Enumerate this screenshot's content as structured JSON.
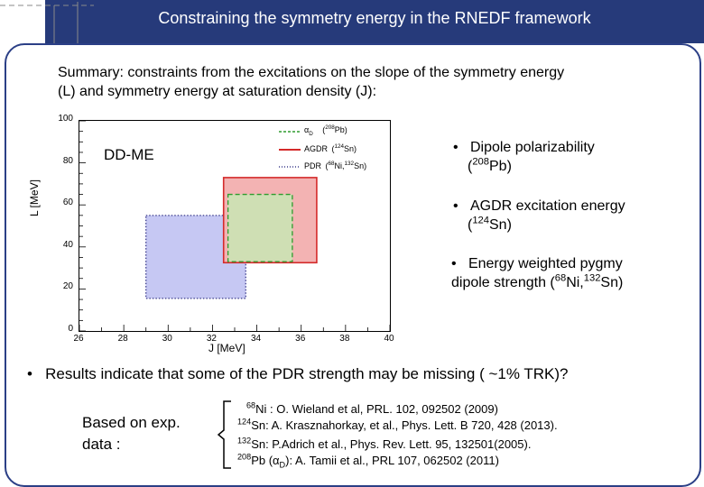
{
  "slide": {
    "title": "Constraining the symmetry energy in the RNEDF framework",
    "summary_line1": "Summary:  constraints from the excitations on the slope of the symmetry energy",
    "summary_line2": "(L) and symmetry energy at saturation density (J):",
    "model_label": "DD-ME",
    "bullets": [
      {
        "marker": "•",
        "text": "Dipole polarizability",
        "nucleus_pre": "(",
        "mass": "208",
        "nucleus": "Pb)"
      },
      {
        "marker": "•",
        "text": "AGDR excitation energy",
        "nucleus_pre": "(",
        "mass": "124",
        "nucleus": "Sn)"
      },
      {
        "marker": "•",
        "text": "Energy weighted pygmy",
        "line2_pre": "dipole strength (",
        "mass1": "68",
        "el1": "Ni,",
        "mass2": "132",
        "el2": "Sn)"
      }
    ],
    "results_marker": "•",
    "results": "Results indicate that some of the PDR strength may be missing ( ~1% TRK)?",
    "based_line1": "Based on exp.",
    "based_line2": "data :",
    "references": [
      {
        "mass": "68",
        "pre": "Ni : O. Wieland et al, PRL. 102, 092502 (2009)"
      },
      {
        "mass": "124",
        "pre": "Sn: A. Krasznahorkay, et al., Phys. Lett. B 720, 428 (2013)."
      },
      {
        "mass": "132",
        "pre": "Sn: P.Adrich et al., Phys. Rev. Lett. 95, 132501(2005)."
      },
      {
        "mass": "208",
        "pre": "Pb (α",
        "sub": "D",
        "post": "):  A. Tamii et al., PRL 107, 062502 (2011)"
      }
    ],
    "colors": {
      "title_band": "#263a7a",
      "frame": "#2b3f86",
      "alpha_d": "#2e9c2e",
      "agdr": "#d42a2a",
      "pdr": "#4a4a9a"
    }
  },
  "chart_data": {
    "type": "box-constraints",
    "xlabel": "J [MeV]",
    "ylabel": "L [MeV]",
    "xlim": [
      26,
      40
    ],
    "ylim": [
      0,
      100
    ],
    "xticks": [
      "26",
      "28",
      "30",
      "32",
      "34",
      "36",
      "38",
      "40"
    ],
    "yticks": [
      "0",
      "20",
      "40",
      "60",
      "80",
      "100"
    ],
    "regions": [
      {
        "name": "PDR",
        "nuclei": "(68Ni,132Sn)",
        "J": [
          29.0,
          33.5
        ],
        "L": [
          15.5,
          55.0
        ],
        "style": "dotted",
        "color": "#3c3c8c",
        "fill": "#c6c8f3"
      },
      {
        "name": "AGDR",
        "nuclei": "(124Sn)",
        "J": [
          32.5,
          36.7
        ],
        "L": [
          32.5,
          73.0
        ],
        "style": "solid",
        "color": "#d42a2a",
        "fill": "#f3b3b3"
      },
      {
        "name": "αD",
        "nuclei": "(208Pb)",
        "J": [
          32.7,
          35.6
        ],
        "L": [
          33.0,
          65.0
        ],
        "style": "dashed",
        "color": "#2e9c2e",
        "fill": "#c8e6b4"
      }
    ],
    "legend": [
      {
        "label_main": "α",
        "label_sub": "D",
        "label_pre": "(",
        "mass": "208",
        "label_post": "Pb)",
        "color": "#2e9c2e",
        "style": "dashed"
      },
      {
        "label_main": "AGDR",
        "label_pre": "(",
        "mass": "124",
        "label_post": "Sn)",
        "color": "#d42a2a",
        "style": "solid"
      },
      {
        "label_main": "PDR",
        "label_pre": "(",
        "mass": "68",
        "label_mid": "Ni,",
        "mass2": "132",
        "label_post": "Sn)",
        "color": "#3c3c8c",
        "style": "dotted"
      }
    ],
    "legend_position": "top-right",
    "grid": false
  }
}
